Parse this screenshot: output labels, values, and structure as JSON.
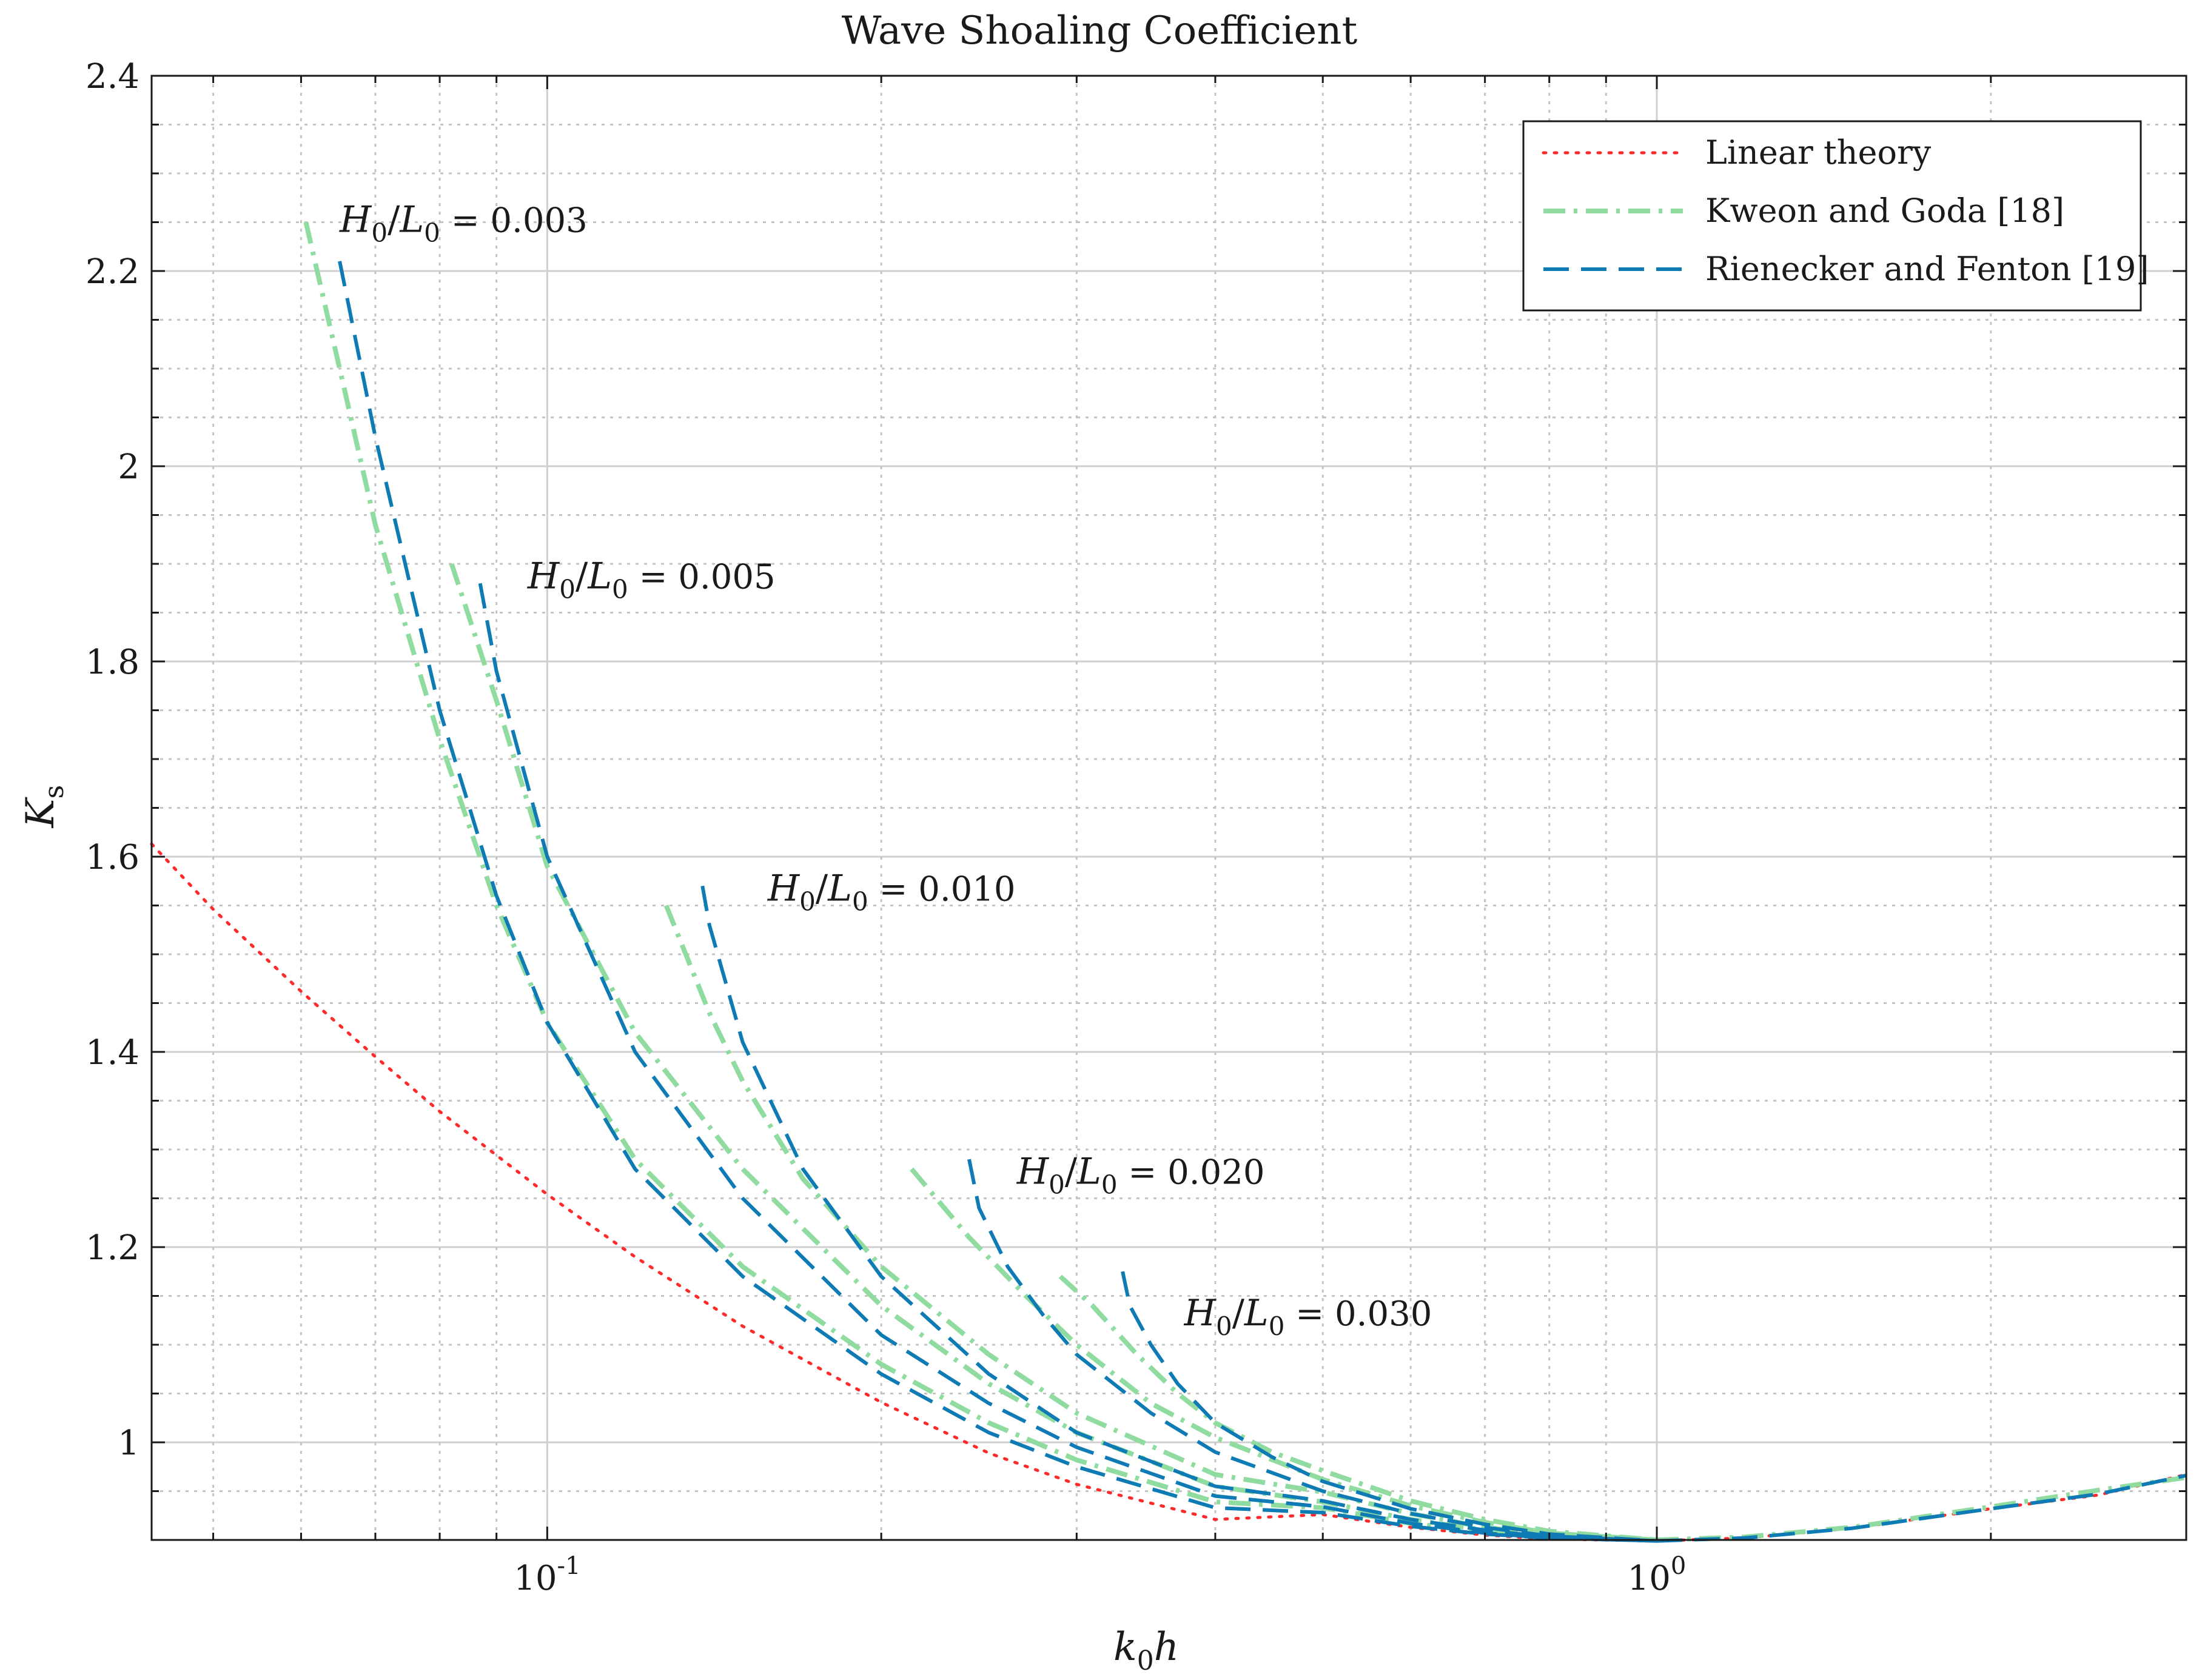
{
  "chart_data": {
    "type": "line",
    "title": "Wave Shoaling Coefficient",
    "xlabel": {
      "main": "k",
      "sub": "0",
      "tail": "h"
    },
    "ylabel": {
      "main": "K",
      "sub": "s"
    },
    "xscale": "log",
    "xlim": [
      0.044,
      3.0
    ],
    "ylim": [
      0.9,
      2.4
    ],
    "grid": true,
    "y_ticks": [
      {
        "value": 1.0,
        "label": "1"
      },
      {
        "value": 1.2,
        "label": "1.2"
      },
      {
        "value": 1.4,
        "label": "1.4"
      },
      {
        "value": 1.6,
        "label": "1.6"
      },
      {
        "value": 1.8,
        "label": "1.8"
      },
      {
        "value": 2.0,
        "label": "2"
      },
      {
        "value": 2.2,
        "label": "2.2"
      },
      {
        "value": 2.4,
        "label": "2.4"
      }
    ],
    "x_ticks": [
      {
        "value": 0.1,
        "base": "10",
        "exp": "-1"
      },
      {
        "value": 1.0,
        "base": "10",
        "exp": "0"
      }
    ],
    "legend": {
      "position": "top-right",
      "entries": [
        {
          "label": "Linear theory",
          "style": "dotted",
          "color": "#ff2a2a"
        },
        {
          "label": "Kweon and Goda [18]",
          "style": "dashdot",
          "color": "#90dca0"
        },
        {
          "label": "Rienecker and Fenton [19]",
          "style": "dashed",
          "color": "#0f7bb4"
        }
      ]
    },
    "annotations": [
      {
        "num": "H",
        "num_sub": "0",
        "den": "L",
        "den_sub": "0",
        "value": "= 0.003",
        "x": 0.065,
        "y": 2.24
      },
      {
        "num": "H",
        "num_sub": "0",
        "den": "L",
        "den_sub": "0",
        "value": "= 0.005",
        "x": 0.096,
        "y": 1.875
      },
      {
        "num": "H",
        "num_sub": "0",
        "den": "L",
        "den_sub": "0",
        "value": "= 0.010",
        "x": 0.158,
        "y": 1.555
      },
      {
        "num": "H",
        "num_sub": "0",
        "den": "L",
        "den_sub": "0",
        "value": "= 0.020",
        "x": 0.265,
        "y": 1.265
      },
      {
        "num": "H",
        "num_sub": "0",
        "den": "L",
        "den_sub": "0",
        "value": "= 0.030",
        "x": 0.375,
        "y": 1.12
      }
    ],
    "series": [
      {
        "name": "Linear theory",
        "style": "dotted",
        "color": "#ff2a2a",
        "x": [
          0.044,
          0.05,
          0.06,
          0.07,
          0.08,
          0.1,
          0.12,
          0.15,
          0.2,
          0.25,
          0.3,
          0.4,
          0.5,
          0.6,
          0.7,
          0.8,
          1.0,
          1.2,
          1.5,
          2.0,
          2.5,
          3.0
        ],
        "y": [
          1.613,
          1.546,
          1.462,
          1.395,
          1.339,
          1.254,
          1.19,
          1.119,
          1.041,
          0.989,
          0.957,
          0.921,
          0.926,
          0.913,
          0.905,
          0.901,
          0.899,
          0.902,
          0.912,
          0.932,
          0.946,
          0.967
        ]
      },
      {
        "name": "Kweon and Goda H0/L0 = 0.003",
        "style": "dashdot",
        "color": "#90dca0",
        "x": [
          0.0606,
          0.065,
          0.07,
          0.08,
          0.09,
          0.1,
          0.12,
          0.15,
          0.2,
          0.25,
          0.3,
          0.4,
          0.5,
          0.6,
          0.7,
          0.8,
          1.0
        ],
        "y": [
          2.25,
          2.1,
          1.94,
          1.72,
          1.55,
          1.43,
          1.29,
          1.18,
          1.08,
          1.02,
          0.982,
          0.939,
          0.933,
          0.917,
          0.908,
          0.903,
          0.9
        ]
      },
      {
        "name": "Rienecker and Fenton H0/L0 = 0.003",
        "style": "dashed",
        "color": "#0f7bb4",
        "x": [
          0.065,
          0.07,
          0.08,
          0.09,
          0.1,
          0.12,
          0.15,
          0.2,
          0.25,
          0.3,
          0.4,
          0.5,
          0.6,
          0.7,
          0.8,
          1.0
        ],
        "y": [
          2.21,
          2.03,
          1.75,
          1.56,
          1.43,
          1.28,
          1.17,
          1.07,
          1.01,
          0.975,
          0.933,
          0.928,
          0.914,
          0.906,
          0.902,
          0.899
        ]
      },
      {
        "name": "Kweon and Goda H0/L0 = 0.005",
        "style": "dashdot",
        "color": "#90dca0",
        "x": [
          0.082,
          0.09,
          0.1,
          0.12,
          0.15,
          0.2,
          0.25,
          0.3,
          0.4,
          0.5,
          0.6,
          0.7,
          0.8,
          1.0
        ],
        "y": [
          1.9,
          1.76,
          1.59,
          1.42,
          1.28,
          1.14,
          1.06,
          1.01,
          0.955,
          0.939,
          0.921,
          0.91,
          0.904,
          0.9
        ]
      },
      {
        "name": "Rienecker and Fenton H0/L0 = 0.005",
        "style": "dashed",
        "color": "#0f7bb4",
        "x": [
          0.087,
          0.09,
          0.1,
          0.12,
          0.15,
          0.2,
          0.25,
          0.3,
          0.4,
          0.5,
          0.6,
          0.7,
          0.8,
          1.0
        ],
        "y": [
          1.88,
          1.79,
          1.6,
          1.4,
          1.25,
          1.11,
          1.04,
          0.995,
          0.945,
          0.934,
          0.917,
          0.907,
          0.902,
          0.899
        ]
      },
      {
        "name": "Kweon and Goda H0/L0 = 0.010",
        "style": "dashdot",
        "color": "#90dca0",
        "x": [
          0.128,
          0.14,
          0.15,
          0.17,
          0.2,
          0.25,
          0.3,
          0.4,
          0.5,
          0.6,
          0.7,
          0.8,
          1.0
        ],
        "y": [
          1.55,
          1.44,
          1.37,
          1.27,
          1.18,
          1.09,
          1.03,
          0.967,
          0.949,
          0.927,
          0.913,
          0.905,
          0.9
        ]
      },
      {
        "name": "Rienecker and Fenton H0/L0 = 0.010",
        "style": "dashed",
        "color": "#0f7bb4",
        "x": [
          0.138,
          0.14,
          0.15,
          0.17,
          0.2,
          0.25,
          0.3,
          0.4,
          0.5,
          0.6,
          0.7,
          0.8,
          1.0
        ],
        "y": [
          1.57,
          1.53,
          1.41,
          1.28,
          1.17,
          1.07,
          1.01,
          0.955,
          0.94,
          0.921,
          0.91,
          0.903,
          0.899
        ]
      },
      {
        "name": "Kweon and Goda H0/L0 = 0.020",
        "style": "dashdot",
        "color": "#90dca0",
        "x": [
          0.213,
          0.24,
          0.27,
          0.3,
          0.35,
          0.4,
          0.5,
          0.6,
          0.7,
          0.8,
          1.0
        ],
        "y": [
          1.28,
          1.21,
          1.15,
          1.1,
          1.04,
          1.005,
          0.962,
          0.935,
          0.918,
          0.907,
          0.9
        ]
      },
      {
        "name": "Rienecker and Fenton H0/L0 = 0.020",
        "style": "dashed",
        "color": "#0f7bb4",
        "x": [
          0.24,
          0.245,
          0.26,
          0.28,
          0.3,
          0.35,
          0.4,
          0.5,
          0.6,
          0.7,
          0.8,
          1.0
        ],
        "y": [
          1.29,
          1.24,
          1.18,
          1.13,
          1.09,
          1.03,
          0.99,
          0.95,
          0.927,
          0.913,
          0.904,
          0.899
        ]
      },
      {
        "name": "Kweon and Goda H0/L0 = 0.030",
        "style": "dashdot",
        "color": "#90dca0",
        "x": [
          0.29,
          0.31,
          0.34,
          0.37,
          0.4,
          0.45,
          0.5,
          0.6,
          0.7,
          0.8,
          1.0
        ],
        "y": [
          1.17,
          1.14,
          1.09,
          1.05,
          1.02,
          0.99,
          0.971,
          0.94,
          0.921,
          0.909,
          0.9
        ]
      },
      {
        "name": "Rienecker and Fenton H0/L0 = 0.030",
        "style": "dashed",
        "color": "#0f7bb4",
        "x": [
          0.33,
          0.335,
          0.35,
          0.37,
          0.4,
          0.45,
          0.5,
          0.6,
          0.7,
          0.8,
          1.0
        ],
        "y": [
          1.175,
          1.14,
          1.1,
          1.06,
          1.02,
          0.985,
          0.96,
          0.932,
          0.916,
          0.906,
          0.899
        ]
      },
      {
        "name": "Kweon and Goda deep water",
        "style": "dashdot",
        "color": "#90dca0",
        "x": [
          1.0,
          1.2,
          1.5,
          2.0,
          2.5,
          3.0
        ],
        "y": [
          0.9,
          0.903,
          0.913,
          0.934,
          0.951,
          0.964
        ]
      },
      {
        "name": "Rienecker and Fenton deep water",
        "style": "dashed",
        "color": "#0f7bb4",
        "x": [
          1.0,
          1.2,
          1.5,
          2.0,
          2.5,
          3.0
        ],
        "y": [
          0.899,
          0.902,
          0.912,
          0.932,
          0.947,
          0.966
        ]
      }
    ]
  }
}
